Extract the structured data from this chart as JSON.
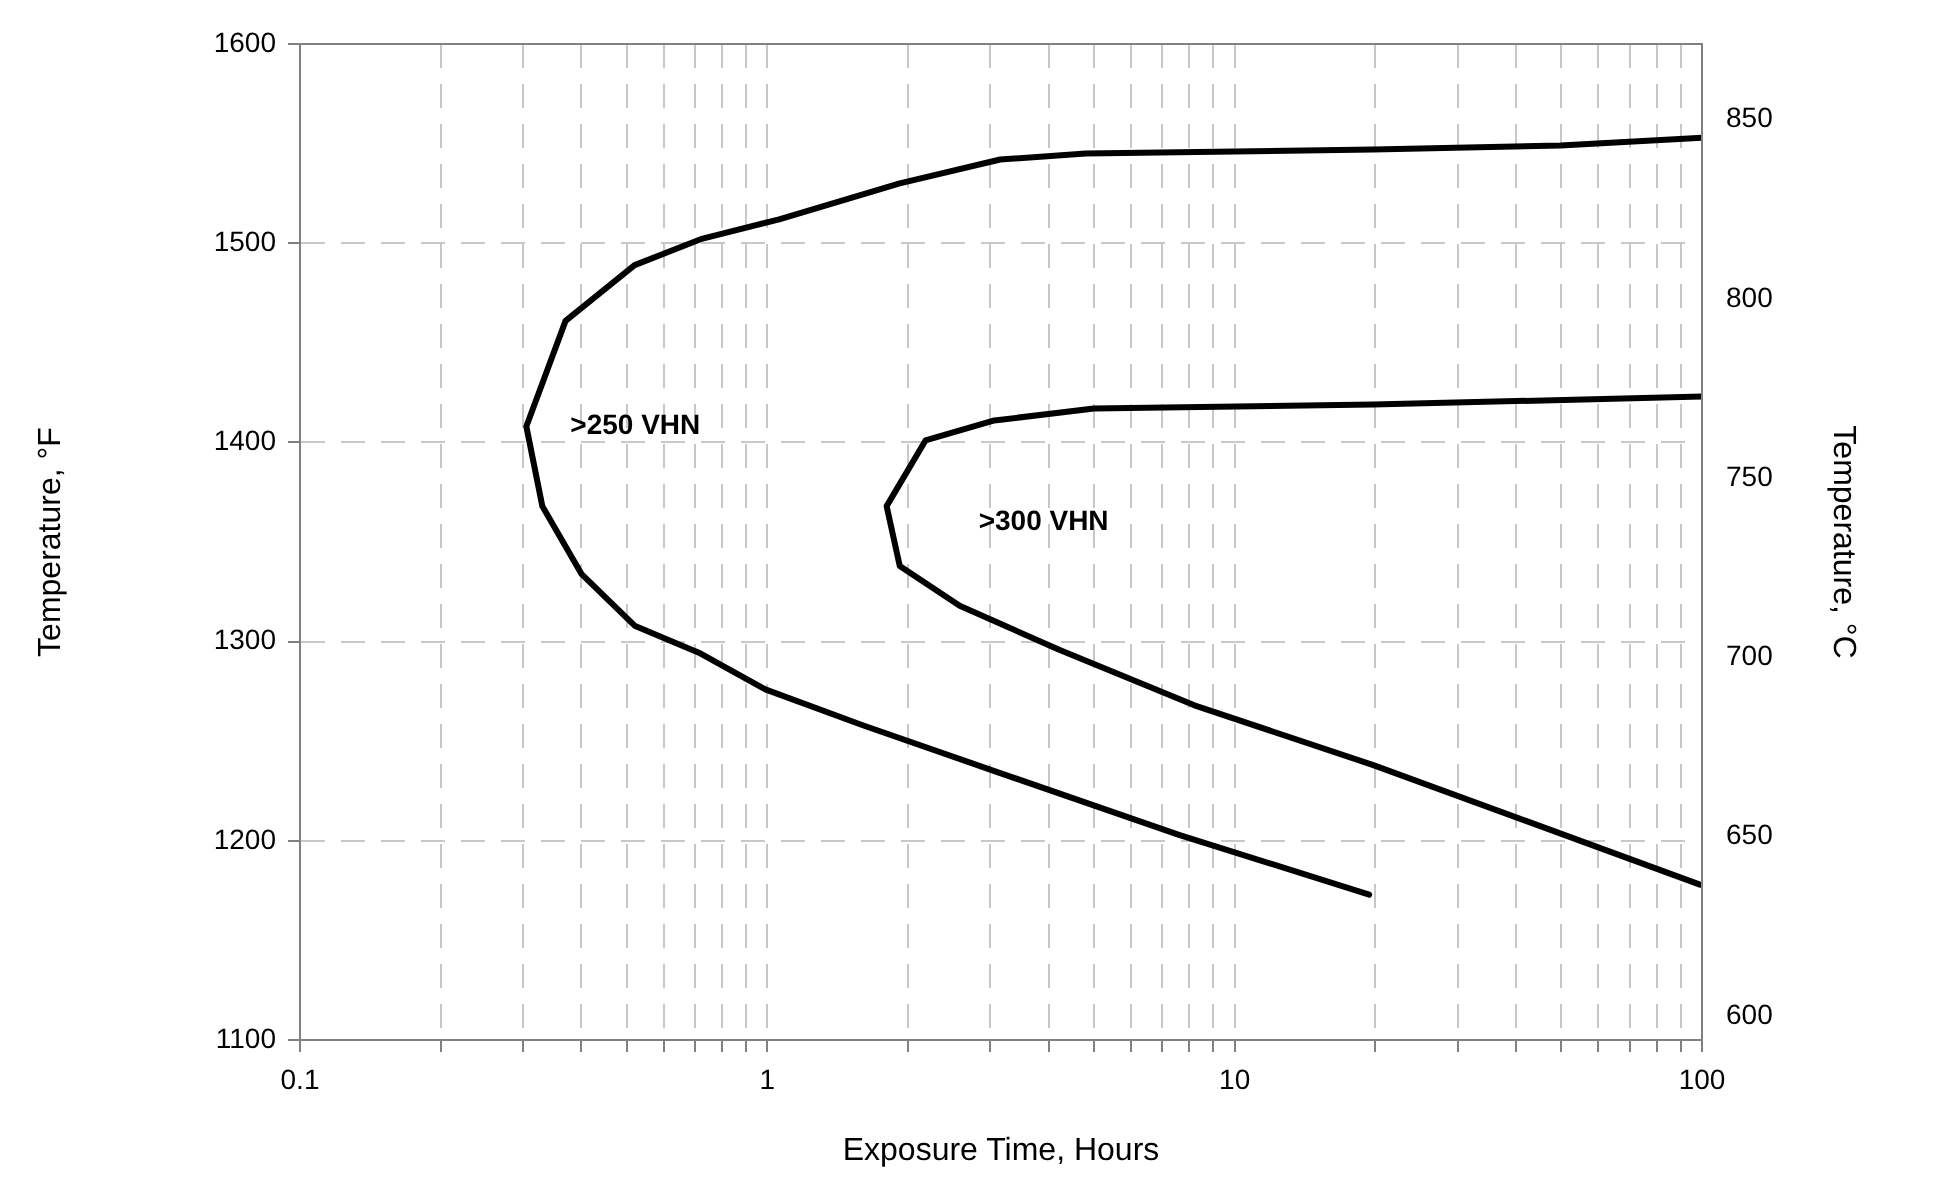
{
  "chart_data": {
    "type": "line",
    "xlabel": "Exposure Time, Hours",
    "ylabel": "Temperature, °F",
    "y2label": "Temperature, °C",
    "series": [
      {
        "color": "#000000",
        "x": [
          19.4,
          7.6,
          3.15,
          1.6,
          0.99,
          0.72,
          0.52,
          0.4,
          0.33,
          0.305,
          0.37,
          0.52,
          0.72,
          1.06,
          1.92,
          3.15,
          4.8,
          19.8,
          49.8,
          100
        ],
        "values": [
          1173,
          1203,
          1234,
          1258,
          1276,
          1294,
          1308,
          1334,
          1368,
          1408,
          1461,
          1489,
          1502,
          1512,
          1530,
          1542,
          1545,
          1547,
          1549,
          1553
        ]
      },
      {
        "color": "#000000",
        "x": [
          99,
          42,
          19.8,
          8.2,
          4.2,
          2.58,
          1.92,
          1.8,
          2.18,
          3.06,
          5.0,
          19.8,
          100
        ],
        "values": [
          1178,
          1210,
          1238,
          1268,
          1296,
          1318,
          1338,
          1368,
          1401,
          1411,
          1417,
          1419,
          1423
        ]
      }
    ],
    "xlim": [
      0.1,
      100
    ],
    "xticks": [
      0.1,
      {
        "value": 0.2,
        "label": null
      },
      {
        "value": 0.3,
        "label": null
      },
      {
        "value": 0.4,
        "label": null
      },
      {
        "value": 0.5,
        "label": null
      },
      {
        "value": 0.6,
        "label": null
      },
      {
        "value": 0.7,
        "label": null
      },
      {
        "value": 0.8,
        "label": null
      },
      {
        "value": 0.9,
        "label": null
      },
      1,
      {
        "value": 2,
        "label": null
      },
      {
        "value": 3,
        "label": null
      },
      {
        "value": 4,
        "label": null
      },
      {
        "value": 5,
        "label": null
      },
      {
        "value": 6,
        "label": null
      },
      {
        "value": 7,
        "label": null
      },
      {
        "value": 8,
        "label": null
      },
      {
        "value": 9,
        "label": null
      },
      10,
      {
        "value": 20,
        "label": null
      },
      {
        "value": 30,
        "label": null
      },
      {
        "value": 40,
        "label": null
      },
      {
        "value": 50,
        "label": null
      },
      {
        "value": 60,
        "label": null
      },
      {
        "value": 70,
        "label": null
      },
      {
        "value": 80,
        "label": null
      },
      {
        "value": 90,
        "label": null
      },
      100
    ],
    "ylim": [
      1100,
      1600
    ],
    "yticks": [
      1100,
      1200,
      1300,
      1400,
      1500,
      1600
    ],
    "y2lim": [
      593.3,
      871.1
    ],
    "y2ticks": [
      600,
      650,
      700,
      750,
      800,
      850
    ],
    "log": "x",
    "grid": true,
    "legend": false,
    "marker": "none",
    "line_style": "solid",
    "annotations": [
      ">250 VHN",
      ">300 VHN"
    ]
  }
}
